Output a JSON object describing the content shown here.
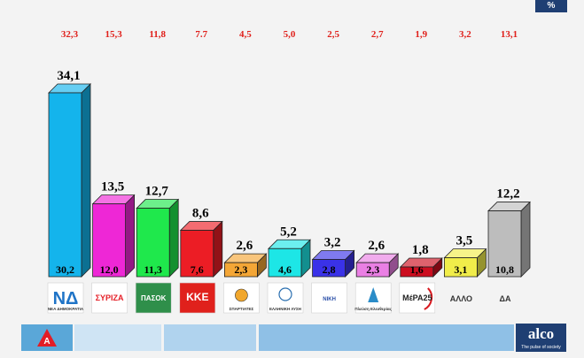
{
  "unit_badge": "%",
  "chart_data": {
    "type": "bar",
    "categories": [
      "ΝΕΑ ΔΗΜΟΚΡΑΤΙΑ",
      "ΣΥΡΙΖΑ",
      "ΠΑΣΟΚ",
      "ΚΚΕ",
      "ΣΠΑΡΤΙΑΤΕΣ",
      "ΕΛΛΗΝΙΚΗ ΛΥΣΗ",
      "ΝΙΚΗ",
      "Πλεύση Ελευθερίας",
      "ΜέΡΑ25",
      "ΑΛΛΟ",
      "ΔΑ"
    ],
    "series": [
      {
        "values": [
          34.1,
          13.5,
          12.7,
          8.6,
          2.6,
          5.2,
          3.2,
          2.6,
          1.8,
          3.5,
          12.2
        ]
      },
      {
        "values": [
          30.2,
          12.0,
          11.3,
          7.6,
          2.3,
          4.6,
          2.8,
          2.3,
          1.6,
          3.1,
          10.8
        ]
      },
      {
        "values": [
          32.3,
          15.3,
          11.8,
          7.7,
          4.5,
          5.0,
          2.5,
          2.7,
          1.9,
          3.2,
          13.1
        ]
      }
    ],
    "labels_top": [
      "34,1",
      "13,5",
      "12,7",
      "8,6",
      "2,6",
      "5,2",
      "3,2",
      "2,6",
      "1,8",
      "3,5",
      "12,2"
    ],
    "labels_base": [
      "30,2",
      "12,0",
      "11,3",
      "7,6",
      "2,3",
      "4,6",
      "2,8",
      "2,3",
      "1,6",
      "3,1",
      "10,8"
    ],
    "labels_previous": [
      "32,3",
      "15,3",
      "11,8",
      "7.7",
      "4,5",
      "5,0",
      "2,5",
      "2,7",
      "1,9",
      "3,2",
      "13,1"
    ],
    "colors": [
      "#14b4ec",
      "#ee27d6",
      "#1fe84c",
      "#ec1d25",
      "#f4a636",
      "#1de6e6",
      "#3a32e8",
      "#ea7fe4",
      "#cc0d1f",
      "#f1ed4a",
      "#bdbdbd"
    ],
    "ylim": [
      0,
      36
    ],
    "grid": false
  },
  "logos": [
    {
      "main": "ΝΔ",
      "sub": "ΝΕΑ ΔΗΜΟΚΡΑΤΙΑ"
    },
    {
      "main": "ΣΥΡΙΖΑ",
      "sub": ""
    },
    {
      "main": "ΠΑΣΟΚ",
      "sub": ""
    },
    {
      "main": "ΚΚΕ",
      "sub": ""
    },
    {
      "main": "",
      "sub": "ΣΠΑΡΤΙΑΤΕΣ"
    },
    {
      "main": "",
      "sub": "ΕΛΛΗΝΙΚΗ ΛΥΣΗ"
    },
    {
      "main": "ΝΙΚΗ",
      "sub": ""
    },
    {
      "main": "",
      "sub": "Πλεύση Ελευθερίας"
    },
    {
      "main": "ΜέΡΑ25",
      "sub": ""
    },
    {
      "main": "ΑΛΛΟ",
      "sub": ""
    },
    {
      "main": "ΔΑ",
      "sub": ""
    }
  ],
  "footer": {
    "channel_logo": "A",
    "pollster_name": "alco",
    "pollster_tagline": "The pulse of society"
  },
  "style": {
    "previous_label_color": "#e0201b",
    "footer_segment_colors": [
      "#cfe4f4",
      "#b0d3ee",
      "#8fc0e6"
    ]
  }
}
